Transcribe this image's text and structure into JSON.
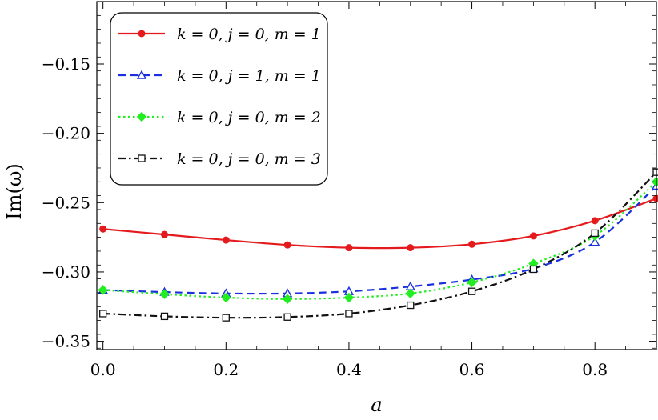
{
  "chart_data": {
    "type": "line",
    "title": "",
    "xlabel": "a",
    "ylabel": "Im(ω)",
    "xlim": [
      -0.01,
      0.9
    ],
    "ylim": [
      -0.356,
      -0.105
    ],
    "xticks": [
      0.0,
      0.2,
      0.4,
      0.6,
      0.8
    ],
    "xtick_labels": [
      "0.0",
      "0.2",
      "0.4",
      "0.6",
      "0.8"
    ],
    "yticks": [
      -0.35,
      -0.3,
      -0.25,
      -0.2,
      -0.15
    ],
    "ytick_labels": [
      "−0.35",
      "−0.30",
      "−0.25",
      "−0.20",
      "−0.15"
    ],
    "grid": false,
    "legend_position": "top-left",
    "x": [
      0.0,
      0.1,
      0.2,
      0.3,
      0.4,
      0.5,
      0.6,
      0.7,
      0.8,
      0.9
    ],
    "series": [
      {
        "name": "k = 0, j = 0, m = 1",
        "color": "#e41a1c",
        "marker": "filled-circle",
        "line_style": "solid",
        "values": [
          -0.269,
          -0.273,
          -0.277,
          -0.2805,
          -0.2825,
          -0.2825,
          -0.28,
          -0.274,
          -0.263,
          -0.247
        ]
      },
      {
        "name": "k = 0, j = 1, m = 1",
        "color": "#1a2fe0",
        "marker": "open-triangle",
        "line_style": "dashed",
        "values": [
          -0.313,
          -0.3145,
          -0.3155,
          -0.3155,
          -0.314,
          -0.3105,
          -0.3055,
          -0.2975,
          -0.2785,
          -0.238
        ]
      },
      {
        "name": "k = 0, j = 0, m = 2",
        "color": "#22ee22",
        "marker": "filled-diamond",
        "line_style": "dotted",
        "values": [
          -0.313,
          -0.316,
          -0.3185,
          -0.3195,
          -0.3185,
          -0.3155,
          -0.3075,
          -0.294,
          -0.274,
          -0.235
        ]
      },
      {
        "name": "k = 0, j = 0, m = 3",
        "color": "#111111",
        "marker": "open-square",
        "line_style": "dashdot",
        "values": [
          -0.33,
          -0.332,
          -0.333,
          -0.3325,
          -0.33,
          -0.324,
          -0.314,
          -0.298,
          -0.272,
          -0.228
        ]
      }
    ]
  }
}
